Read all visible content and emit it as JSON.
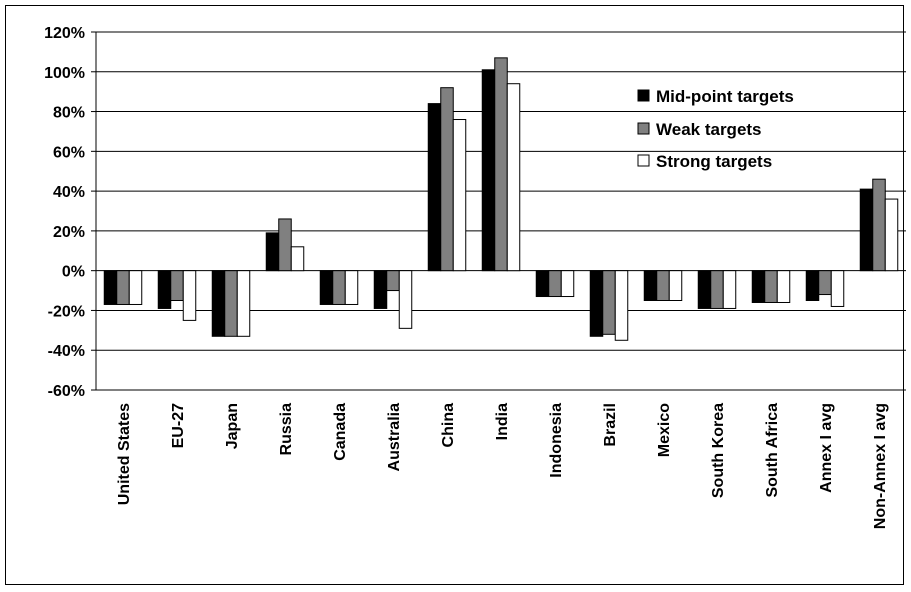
{
  "chart_data": {
    "type": "bar",
    "categories": [
      "United States",
      "EU-27",
      "Japan",
      "Russia",
      "Canada",
      "Australia",
      "China",
      "India",
      "Indonesia",
      "Brazil",
      "Mexico",
      "South Korea",
      "South Africa",
      "Annex I avg",
      "Non-Annex I avg"
    ],
    "series": [
      {
        "name": "Mid-point targets",
        "color": "#000000",
        "values": [
          -17,
          -19,
          -33,
          19,
          -17,
          -19,
          84,
          101,
          -13,
          -33,
          -15,
          -19,
          -16,
          -15,
          41
        ]
      },
      {
        "name": "Weak targets",
        "color": "#808080",
        "values": [
          -17,
          -15,
          -33,
          26,
          -17,
          -10,
          92,
          107,
          -13,
          -32,
          -15,
          -19,
          -16,
          -12,
          46
        ]
      },
      {
        "name": "Strong targets",
        "color": "#ffffff",
        "values": [
          -17,
          -25,
          -33,
          12,
          -17,
          -29,
          76,
          94,
          -13,
          -35,
          -15,
          -19,
          -16,
          -18,
          36
        ]
      }
    ],
    "ylim": [
      -60,
      120
    ],
    "yticks": [
      "-60%",
      "-40%",
      "-20%",
      "0%",
      "20%",
      "40%",
      "60%",
      "80%",
      "100%",
      "120%"
    ],
    "grid": true,
    "legend": "top-right"
  }
}
